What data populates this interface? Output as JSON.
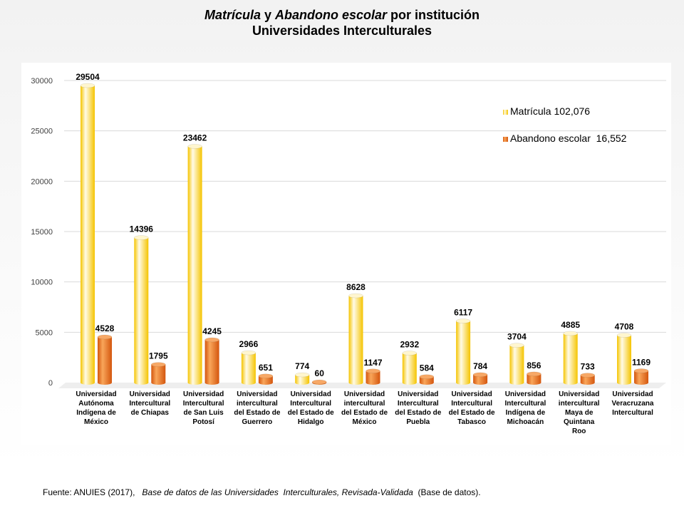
{
  "title": {
    "part1": "Matrícula",
    "part2": " y ",
    "part3": "Abandono escolar",
    "part4": " por institución",
    "line2": "Universidades Interculturales"
  },
  "source": {
    "prefix": "Fuente: ANUIES (2017),",
    "italic": "Base de datos de las Universidades  Interculturales, Revisada-Validada",
    "suffix": "(Base de datos)."
  },
  "colors": {
    "matricula_light": "#fffbe8",
    "matricula_dark": "#f5c400",
    "abandono_light": "#f9a65a",
    "abandono_dark": "#d4560e",
    "gridline": "#d9d9d9"
  },
  "chart_data": {
    "type": "bar",
    "title": "Matrícula y Abandono escolar por institución Universidades Interculturales",
    "categories": [
      [
        "Universidad",
        "Autónoma",
        "Indígena de",
        "México"
      ],
      [
        "Universidad",
        "Intercultural",
        "de Chiapas"
      ],
      [
        "Universidad",
        "Intercultural",
        "de San Luis",
        "Potosí"
      ],
      [
        "Universidad",
        "intercultural",
        "del Estado de",
        "Guerrero"
      ],
      [
        "Universidad",
        "Intercultural",
        "del Estado de",
        "Hidalgo"
      ],
      [
        "Universidad",
        "intercultural",
        "del Estado de",
        "México"
      ],
      [
        "Universidad",
        "Intercultural",
        "del Estado de",
        "Puebla"
      ],
      [
        "Universidad",
        "Intercultural",
        "del Estado de",
        "Tabasco"
      ],
      [
        "Universidad",
        "Intercultural",
        "Indígena de",
        "Michoacán"
      ],
      [
        "Universidad",
        "intercultural",
        "Maya de",
        "Quintana",
        "Roo"
      ],
      [
        "Universidad",
        "Veracruzana",
        "Intercultural"
      ]
    ],
    "series": [
      {
        "name": "Matrícula 102,076",
        "values": [
          29504,
          14396,
          23462,
          2966,
          774,
          8628,
          2932,
          6117,
          3704,
          4885,
          4708
        ]
      },
      {
        "name": "Abandono escolar  16,552",
        "values": [
          4528,
          1795,
          4245,
          651,
          60,
          1147,
          584,
          784,
          856,
          733,
          1169
        ]
      }
    ],
    "ylim": [
      0,
      30000
    ],
    "yticks": [
      0,
      5000,
      10000,
      15000,
      20000,
      25000,
      30000
    ],
    "grid": true,
    "legend": "top-right"
  }
}
